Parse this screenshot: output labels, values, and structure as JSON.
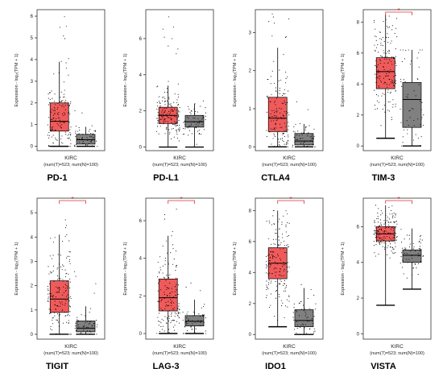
{
  "chart_data": [
    {
      "type": "box",
      "title": "PD-1",
      "ylabel": "Expression - log₂(TPM + 1)",
      "xlabel": "KIRC",
      "sub": "(num(T)=523; num(N)=100)",
      "yticks": [
        0,
        1,
        2,
        3,
        4,
        5,
        6
      ],
      "ylim": [
        -0.2,
        6.3
      ],
      "significant": false,
      "tumor": {
        "min": 0,
        "q1": 0.7,
        "median": 1.15,
        "q3": 2.0,
        "max": 3.9,
        "top": 6.1
      },
      "normal": {
        "min": 0,
        "q1": 0.1,
        "median": 0.3,
        "q3": 0.55,
        "max": 0.9,
        "top": 2.8
      }
    },
    {
      "type": "box",
      "title": "PD-L1",
      "ylabel": "Expression - log₂(TPM + 1)",
      "xlabel": "KIRC",
      "sub": "(num(T)=523; num(N)=100)",
      "yticks": [
        0,
        2,
        4,
        6
      ],
      "ylim": [
        -0.2,
        7.6
      ],
      "significant": false,
      "tumor": {
        "min": 0,
        "q1": 1.3,
        "median": 1.75,
        "q3": 2.2,
        "max": 3.4,
        "top": 7.3
      },
      "normal": {
        "min": 0,
        "q1": 1.1,
        "median": 1.4,
        "q3": 1.75,
        "max": 2.4,
        "top": 2.7
      }
    },
    {
      "type": "box",
      "title": "CTLA4",
      "ylabel": "Expression - log₂(TPM + 1)",
      "xlabel": "KIRC",
      "sub": "(num(T)=523; num(N)=100)",
      "yticks": [
        0,
        1,
        2,
        3
      ],
      "ylim": [
        -0.1,
        3.6
      ],
      "significant": false,
      "tumor": {
        "min": 0,
        "q1": 0.4,
        "median": 0.75,
        "q3": 1.3,
        "max": 2.6,
        "top": 3.5
      },
      "normal": {
        "min": 0,
        "q1": 0.05,
        "median": 0.15,
        "q3": 0.35,
        "max": 0.6,
        "top": 1.3
      }
    },
    {
      "type": "box",
      "title": "TIM-3",
      "ylabel": "Expression - log₂(TPM + 1)",
      "xlabel": "KIRC",
      "sub": "(num(T)=523; num(N)=100)",
      "yticks": [
        0,
        2,
        4,
        6,
        8
      ],
      "ylim": [
        -0.3,
        8.8
      ],
      "significant": true,
      "tumor": {
        "min": 0.5,
        "q1": 3.7,
        "median": 4.8,
        "q3": 5.7,
        "max": 8.5,
        "top": 8.5
      },
      "normal": {
        "min": 0,
        "q1": 1.2,
        "median": 3.0,
        "q3": 4.1,
        "max": 6.2,
        "top": 6.2
      }
    },
    {
      "type": "box",
      "title": "TIGIT",
      "ylabel": "Expression - log₂(TPM + 1)",
      "xlabel": "KIRC",
      "sub": "(num(T)=523; num(N)=100)",
      "yticks": [
        0,
        1,
        2,
        3,
        4,
        5
      ],
      "ylim": [
        -0.2,
        5.6
      ],
      "significant": true,
      "tumor": {
        "min": 0,
        "q1": 0.9,
        "median": 1.45,
        "q3": 2.2,
        "max": 4.1,
        "top": 4.9
      },
      "normal": {
        "min": 0,
        "q1": 0.1,
        "median": 0.25,
        "q3": 0.55,
        "max": 1.15,
        "top": 3.1
      }
    },
    {
      "type": "box",
      "title": "LAG-3",
      "ylabel": "Expression - log₂(TPM + 1)",
      "xlabel": "KIRC",
      "sub": "(num(T)=523; num(N)=100)",
      "yticks": [
        0,
        2,
        4,
        6
      ],
      "ylim": [
        -0.3,
        7.2
      ],
      "significant": true,
      "tumor": {
        "min": 0,
        "q1": 1.2,
        "median": 1.9,
        "q3": 2.9,
        "max": 5.2,
        "top": 6.8
      },
      "normal": {
        "min": 0,
        "q1": 0.4,
        "median": 0.65,
        "q3": 0.95,
        "max": 1.8,
        "top": 3.7
      }
    },
    {
      "type": "box",
      "title": "IDO1",
      "ylabel": "Expression - log₂(TPM + 1)",
      "xlabel": "KIRC",
      "sub": "(num(T)=523; num(N)=100)",
      "yticks": [
        0,
        2,
        4,
        6,
        8
      ],
      "ylim": [
        -0.3,
        8.8
      ],
      "significant": true,
      "tumor": {
        "min": 0.5,
        "q1": 3.6,
        "median": 4.6,
        "q3": 5.6,
        "max": 8.0,
        "top": 8.0
      },
      "normal": {
        "min": 0,
        "q1": 0.5,
        "median": 0.9,
        "q3": 1.6,
        "max": 3.0,
        "top": 4.1
      }
    },
    {
      "type": "box",
      "title": "VISTA",
      "ylabel": "Expression - log₂(TPM + 1)",
      "xlabel": "KIRC",
      "sub": "(num(T)=523; num(N)=100)",
      "yticks": [
        0,
        2,
        4,
        6
      ],
      "ylim": [
        -0.3,
        7.6
      ],
      "significant": true,
      "tumor": {
        "min": 1.6,
        "q1": 5.2,
        "median": 5.6,
        "q3": 6.0,
        "max": 7.2,
        "top": 7.2
      },
      "normal": {
        "min": 2.5,
        "q1": 4.0,
        "median": 4.4,
        "q3": 4.7,
        "max": 5.9,
        "top": 6.4
      }
    }
  ],
  "colors": {
    "tumor": "#f05a5a",
    "normal": "#808080",
    "significance": "#e03030",
    "point": "#000000"
  }
}
